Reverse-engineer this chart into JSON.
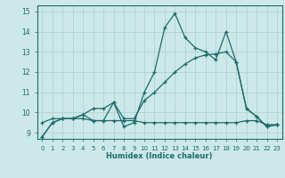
{
  "xlabel": "Humidex (Indice chaleur)",
  "xlim": [
    -0.5,
    23.5
  ],
  "ylim": [
    8.7,
    15.3
  ],
  "yticks": [
    9,
    10,
    11,
    12,
    13,
    14,
    15
  ],
  "xticks": [
    0,
    1,
    2,
    3,
    4,
    5,
    6,
    7,
    8,
    9,
    10,
    11,
    12,
    13,
    14,
    15,
    16,
    17,
    18,
    19,
    20,
    21,
    22,
    23
  ],
  "bg_color": "#cde8e8",
  "grid_color": "#aecece",
  "line_color": "#1a6b6b",
  "line1_x": [
    0,
    1,
    2,
    3,
    4,
    5,
    6,
    7,
    8,
    9,
    10,
    11,
    12,
    13,
    14,
    15,
    16,
    17,
    18,
    19,
    20,
    21,
    22,
    23
  ],
  "line1_y": [
    8.8,
    9.5,
    9.7,
    9.7,
    9.9,
    10.2,
    10.2,
    10.5,
    9.3,
    9.5,
    11.0,
    12.0,
    14.2,
    14.9,
    13.7,
    13.2,
    13.0,
    12.6,
    14.0,
    12.5,
    10.2,
    9.8,
    9.3,
    9.4
  ],
  "line2_x": [
    0,
    1,
    2,
    3,
    4,
    5,
    6,
    7,
    8,
    9,
    10,
    11,
    12,
    13,
    14,
    15,
    16,
    17,
    18,
    19,
    20,
    21,
    22,
    23
  ],
  "line2_y": [
    9.5,
    9.7,
    9.7,
    9.7,
    9.7,
    9.6,
    9.6,
    9.6,
    9.6,
    9.6,
    9.5,
    9.5,
    9.5,
    9.5,
    9.5,
    9.5,
    9.5,
    9.5,
    9.5,
    9.5,
    9.6,
    9.6,
    9.4,
    9.4
  ],
  "line3_x": [
    0,
    1,
    2,
    3,
    4,
    5,
    6,
    7,
    8,
    9,
    10,
    11,
    12,
    13,
    14,
    15,
    16,
    17,
    18,
    19,
    20,
    21,
    22,
    23
  ],
  "line3_y": [
    8.8,
    9.5,
    9.7,
    9.7,
    9.9,
    9.6,
    9.6,
    10.5,
    9.7,
    9.7,
    10.6,
    11.0,
    11.5,
    12.0,
    12.4,
    12.7,
    12.85,
    12.9,
    13.0,
    12.5,
    10.2,
    9.8,
    9.3,
    9.4
  ]
}
